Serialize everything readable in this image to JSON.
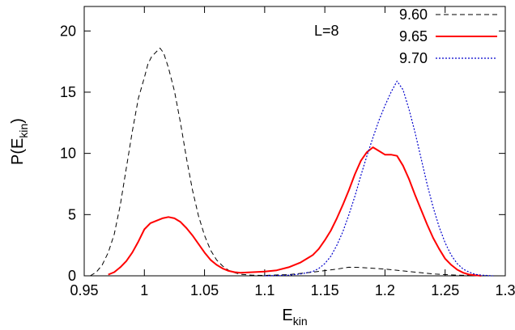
{
  "chart_data": {
    "type": "line",
    "xlabel": {
      "main": "E",
      "sub": "kin"
    },
    "ylabel": {
      "main": "P(E",
      "sub": "kin",
      "close": ")"
    },
    "xlim": [
      0.95,
      1.3
    ],
    "ylim": [
      0,
      22
    ],
    "x_ticks": [
      0.95,
      1.0,
      1.05,
      1.1,
      1.15,
      1.2,
      1.25,
      1.3
    ],
    "x_tick_labels": [
      "0.95",
      "1",
      "1.05",
      "1.1",
      "1.15",
      "1.2",
      "1.25",
      "1.3"
    ],
    "y_ticks": [
      0,
      5,
      10,
      15,
      20
    ],
    "y_tick_labels": [
      "0",
      "5",
      "10",
      "15",
      "20"
    ],
    "grid": false,
    "legend_position": "top-right",
    "annotation": "L=8",
    "series": [
      {
        "name": "9.60",
        "color": "#000000",
        "dash": "dashed",
        "x": [
          0.955,
          0.96,
          0.965,
          0.97,
          0.975,
          0.98,
          0.985,
          0.99,
          0.995,
          1.0,
          1.003,
          1.006,
          1.01,
          1.013,
          1.016,
          1.02,
          1.025,
          1.03,
          1.035,
          1.04,
          1.045,
          1.05,
          1.055,
          1.06,
          1.065,
          1.07,
          1.075,
          1.08,
          1.09,
          1.1,
          1.12,
          1.14,
          1.16,
          1.17,
          1.18,
          1.2,
          1.22,
          1.24,
          1.26,
          1.28,
          1.29
        ],
        "y": [
          0.0,
          0.3,
          0.9,
          1.9,
          3.4,
          5.8,
          8.8,
          11.8,
          14.5,
          16.2,
          17.3,
          17.9,
          18.3,
          18.6,
          18.2,
          17.0,
          15.1,
          12.5,
          9.6,
          7.0,
          4.9,
          3.3,
          2.1,
          1.3,
          0.8,
          0.45,
          0.25,
          0.12,
          0.05,
          0.03,
          0.1,
          0.3,
          0.55,
          0.7,
          0.68,
          0.55,
          0.35,
          0.15,
          0.05,
          0.01,
          0.0
        ]
      },
      {
        "name": "9.65",
        "color": "#ff0000",
        "dash": "solid",
        "x": [
          0.97,
          0.975,
          0.98,
          0.985,
          0.99,
          0.995,
          1.0,
          1.005,
          1.01,
          1.015,
          1.02,
          1.025,
          1.03,
          1.035,
          1.04,
          1.045,
          1.05,
          1.055,
          1.06,
          1.065,
          1.07,
          1.075,
          1.08,
          1.09,
          1.1,
          1.11,
          1.12,
          1.13,
          1.14,
          1.145,
          1.15,
          1.155,
          1.16,
          1.165,
          1.17,
          1.175,
          1.18,
          1.185,
          1.19,
          1.195,
          1.2,
          1.205,
          1.21,
          1.215,
          1.22,
          1.225,
          1.23,
          1.235,
          1.24,
          1.245,
          1.25,
          1.255,
          1.26,
          1.265,
          1.27,
          1.28
        ],
        "y": [
          0.1,
          0.3,
          0.7,
          1.2,
          1.9,
          2.8,
          3.8,
          4.3,
          4.5,
          4.7,
          4.8,
          4.7,
          4.4,
          3.9,
          3.3,
          2.6,
          1.9,
          1.3,
          0.9,
          0.6,
          0.4,
          0.3,
          0.25,
          0.3,
          0.35,
          0.45,
          0.7,
          1.1,
          1.7,
          2.2,
          2.9,
          3.7,
          4.7,
          5.8,
          7.0,
          8.3,
          9.4,
          10.1,
          10.5,
          10.2,
          9.9,
          9.9,
          9.8,
          9.0,
          7.9,
          6.6,
          5.4,
          4.2,
          3.1,
          2.2,
          1.4,
          0.9,
          0.5,
          0.25,
          0.1,
          0.0
        ]
      },
      {
        "name": "9.70",
        "color": "#0000cc",
        "dash": "dotted",
        "x": [
          1.1,
          1.12,
          1.13,
          1.14,
          1.145,
          1.15,
          1.155,
          1.16,
          1.165,
          1.17,
          1.175,
          1.18,
          1.185,
          1.19,
          1.195,
          1.2,
          1.205,
          1.21,
          1.215,
          1.22,
          1.225,
          1.23,
          1.235,
          1.24,
          1.245,
          1.25,
          1.255,
          1.26,
          1.265,
          1.27,
          1.275,
          1.28,
          1.29
        ],
        "y": [
          0.0,
          0.05,
          0.15,
          0.35,
          0.6,
          1.0,
          1.6,
          2.5,
          3.6,
          5.0,
          6.5,
          8.2,
          9.8,
          11.3,
          12.7,
          13.9,
          15.0,
          15.9,
          15.2,
          13.6,
          11.7,
          9.6,
          7.5,
          5.6,
          4.0,
          2.7,
          1.7,
          1.0,
          0.55,
          0.3,
          0.12,
          0.05,
          0.0
        ]
      }
    ]
  }
}
